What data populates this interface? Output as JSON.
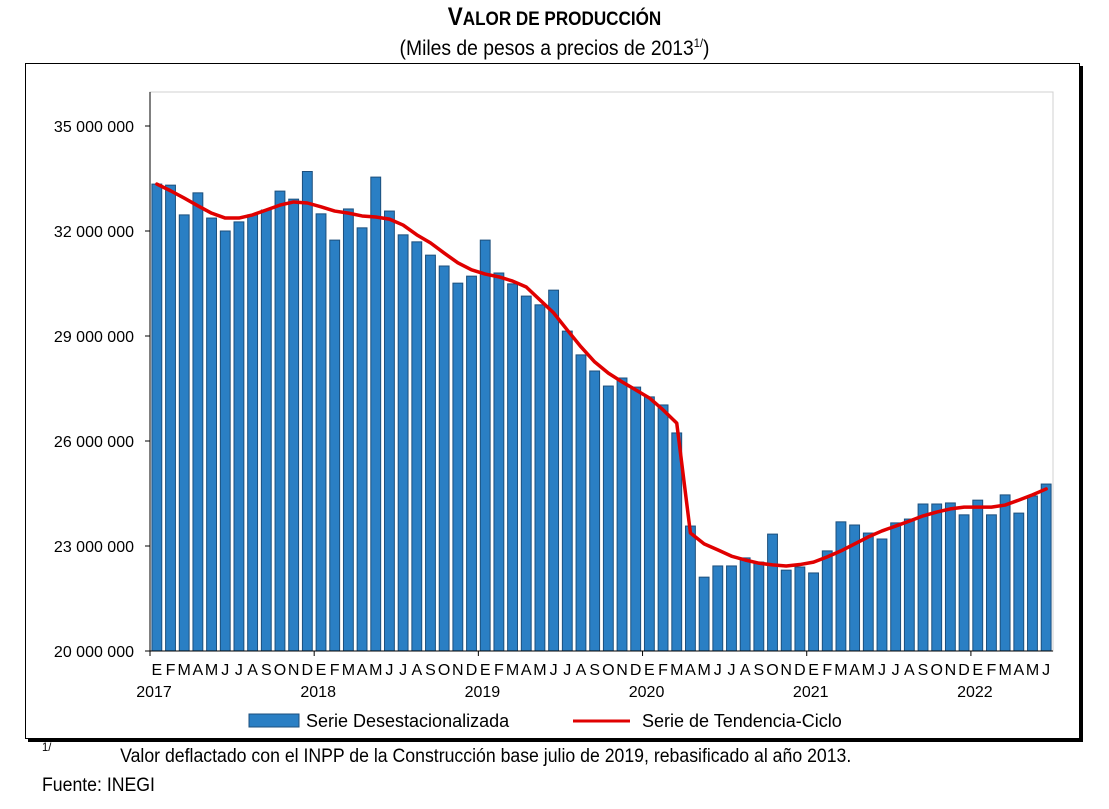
{
  "header": {
    "title_first": "V",
    "title_rest": "ALOR DE PRODUCCIÓN",
    "subtitle_main": "(Miles de pesos a precios de 2013",
    "subtitle_sup": "1/",
    "subtitle_close": ")"
  },
  "footer": {
    "footnote_mark": "1/",
    "footnote_text": "Valor deflactado con el INPP de la Construcción base julio de 2019, rebasificado al año 2013.",
    "source": "Fuente:  INEGI"
  },
  "colors": {
    "bar_fill": "#2a7fc4",
    "bar_stroke": "#1c4f7c",
    "trend_line": "#e00000"
  },
  "chart_data": {
    "type": "bar",
    "title": "VALOR DE PRODUCCIÓN",
    "subtitle": "(Miles de pesos a precios de 2013 1/)",
    "xlabel": "",
    "ylabel": "",
    "ylim": [
      20000000,
      36000000
    ],
    "yticks": [
      20000000,
      23000000,
      26000000,
      29000000,
      32000000,
      35000000
    ],
    "ytick_labels": [
      "20 000 000",
      "23 000 000",
      "26 000 000",
      "29 000 000",
      "32 000 000",
      "35 000 000"
    ],
    "grid": false,
    "legend_position": "bottom",
    "month_labels": [
      "E",
      "F",
      "M",
      "A",
      "M",
      "J",
      "J",
      "A",
      "S",
      "O",
      "N",
      "D"
    ],
    "years": [
      "2017",
      "2018",
      "2019",
      "2020",
      "2021",
      "2022"
    ],
    "start": "2017-01",
    "end": "2022-06",
    "series": [
      {
        "name": "Serie Desestacionalizada",
        "type": "bar",
        "values": [
          33340000,
          33310000,
          32460000,
          33090000,
          32370000,
          32000000,
          32260000,
          32460000,
          32600000,
          33140000,
          32910000,
          33700000,
          32490000,
          31740000,
          32630000,
          32090000,
          33540000,
          32570000,
          31890000,
          31690000,
          31310000,
          31000000,
          30510000,
          30710000,
          31740000,
          30800000,
          30490000,
          30140000,
          29890000,
          30310000,
          29140000,
          28460000,
          28000000,
          27570000,
          27800000,
          27540000,
          27260000,
          27030000,
          26230000,
          23570000,
          22110000,
          22430000,
          22430000,
          22660000,
          22540000,
          23340000,
          22310000,
          22400000,
          22230000,
          22860000,
          23690000,
          23600000,
          23370000,
          23200000,
          23660000,
          23770000,
          24200000,
          24200000,
          24230000,
          23890000,
          24310000,
          23890000,
          24460000,
          23940000,
          24430000,
          24770000
        ]
      },
      {
        "name": "Serie de Tendencia-Ciclo",
        "type": "line",
        "values": [
          33340000,
          33150000,
          32940000,
          32720000,
          32510000,
          32370000,
          32370000,
          32460000,
          32600000,
          32740000,
          32830000,
          32800000,
          32690000,
          32570000,
          32510000,
          32430000,
          32400000,
          32340000,
          32170000,
          31890000,
          31660000,
          31370000,
          31090000,
          30890000,
          30770000,
          30690000,
          30570000,
          30400000,
          30030000,
          29660000,
          29170000,
          28690000,
          28260000,
          27940000,
          27690000,
          27460000,
          27230000,
          26890000,
          26510000,
          23370000,
          23060000,
          22890000,
          22710000,
          22600000,
          22510000,
          22460000,
          22430000,
          22470000,
          22540000,
          22690000,
          22860000,
          23060000,
          23260000,
          23430000,
          23570000,
          23710000,
          23860000,
          23970000,
          24060000,
          24110000,
          24110000,
          24110000,
          24170000,
          24310000,
          24460000,
          24630000
        ]
      }
    ]
  }
}
